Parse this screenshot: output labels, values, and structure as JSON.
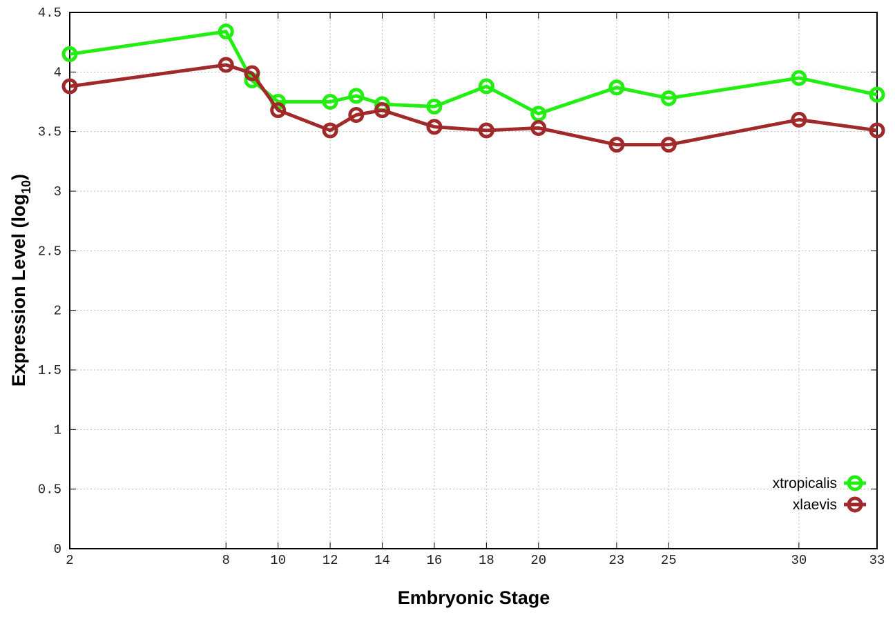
{
  "chart_data": {
    "type": "line",
    "title": "",
    "xlabel": "Embryonic Stage",
    "ylabel": {
      "main": "Expression Level (log",
      "sub": "10",
      "close": ")"
    },
    "xlim": [
      2,
      33
    ],
    "ylim": [
      0,
      4.5
    ],
    "x_ticks": [
      2,
      8,
      10,
      12,
      14,
      16,
      18,
      20,
      23,
      25,
      30,
      33
    ],
    "y_ticks": [
      "0",
      "0.5",
      "1",
      "1.5",
      "2",
      "2.5",
      "3",
      "3.5",
      "4",
      "4.5"
    ],
    "grid": true,
    "legend_position": "bottom-right",
    "x": [
      2,
      8,
      9,
      10,
      12,
      13,
      14,
      16,
      18,
      20,
      23,
      25,
      30,
      33
    ],
    "series": [
      {
        "name": "xtropicalis",
        "color": "#22ee11",
        "values": [
          4.15,
          4.34,
          3.93,
          3.75,
          3.75,
          3.8,
          3.73,
          3.71,
          3.88,
          3.65,
          3.87,
          3.78,
          3.95,
          3.81
        ]
      },
      {
        "name": "xlaevis",
        "color": "#a02a2a",
        "values": [
          3.88,
          4.06,
          3.99,
          3.68,
          3.51,
          3.64,
          3.68,
          3.54,
          3.51,
          3.53,
          3.39,
          3.39,
          3.6,
          3.51
        ]
      }
    ]
  }
}
